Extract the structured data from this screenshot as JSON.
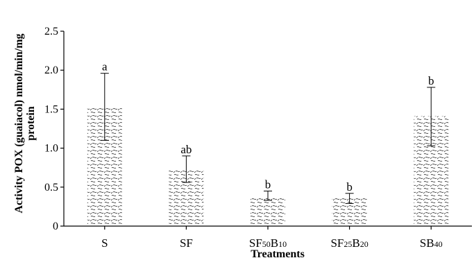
{
  "chart_data": {
    "type": "bar",
    "title": "",
    "xlabel": "Treatments",
    "ylabel_line1": "Activity POX (guaiacol) nmol/min/mg",
    "ylabel_line2": "protein",
    "categories": [
      {
        "base": "S",
        "parts": [
          {
            "t": "S",
            "sub": false
          }
        ]
      },
      {
        "base": "SF",
        "parts": [
          {
            "t": "SF",
            "sub": false
          }
        ]
      },
      {
        "base": "SF50B10",
        "parts": [
          {
            "t": "SF",
            "sub": false
          },
          {
            "t": "50",
            "sub": true
          },
          {
            "t": "B",
            "sub": false
          },
          {
            "t": "10",
            "sub": true
          }
        ]
      },
      {
        "base": "SF25B20",
        "parts": [
          {
            "t": "SF",
            "sub": false
          },
          {
            "t": "25",
            "sub": true
          },
          {
            "t": "B",
            "sub": false
          },
          {
            "t": "20",
            "sub": true
          }
        ]
      },
      {
        "base": "SB40",
        "parts": [
          {
            "t": "SB",
            "sub": false
          },
          {
            "t": "40",
            "sub": true
          }
        ]
      }
    ],
    "values": [
      1.52,
      0.72,
      0.37,
      0.37,
      1.41
    ],
    "error_low": [
      1.1,
      0.56,
      0.33,
      0.29,
      1.03
    ],
    "error_high": [
      1.96,
      0.9,
      0.45,
      0.42,
      1.78
    ],
    "significance": [
      "a",
      "ab",
      "b",
      "b",
      "b"
    ],
    "ylim": [
      0,
      2.5
    ],
    "yticks": [
      {
        "value": 0,
        "label": "0"
      },
      {
        "value": 0.5,
        "label": "0.5"
      },
      {
        "value": 1.0,
        "label": "1.0"
      },
      {
        "value": 1.5,
        "label": "1.5"
      },
      {
        "value": 2.0,
        "label": "2.0"
      },
      {
        "value": 2.5,
        "label": "2.5"
      }
    ],
    "grid": false,
    "legend": "none",
    "bar_pattern": "swirl-hatch",
    "colors": {
      "axis": "#000000",
      "bar_fill": "#ffffff",
      "pattern": "#444444"
    }
  }
}
